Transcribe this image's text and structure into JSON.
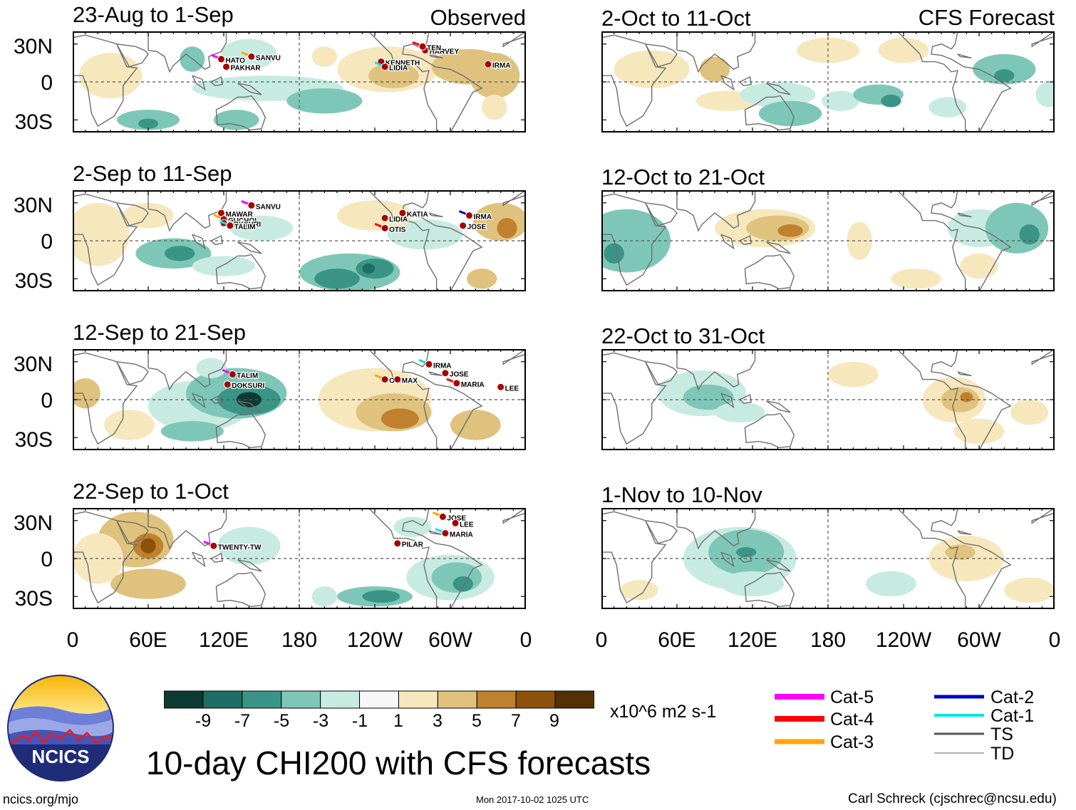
{
  "column_titles": {
    "left": "Observed",
    "right": "CFS Forecast"
  },
  "chart_data": [
    {
      "type": "heatmap",
      "panel": "observed-1",
      "title": "23-Aug to 1-Sep",
      "storms": [
        "HATO",
        "PAKHAR",
        "SANVU",
        "KENNETH",
        "LIDIA",
        "HARVEY",
        "TEN",
        "IRMA"
      ]
    },
    {
      "type": "heatmap",
      "panel": "observed-2",
      "title": "2-Sep to 11-Sep",
      "storms": [
        "SANVU",
        "MAWAR",
        "GUCHOL",
        "DOKSURI",
        "TALIM",
        "LIDIA",
        "OTIS",
        "KATIA",
        "IRMA",
        "JOSE"
      ]
    },
    {
      "type": "heatmap",
      "panel": "observed-3",
      "title": "12-Sep to 21-Sep",
      "storms": [
        "TALIM",
        "DOKSURI",
        "OTIS",
        "MAX",
        "IRMA",
        "JOSE",
        "MARIA",
        "LEE"
      ]
    },
    {
      "type": "heatmap",
      "panel": "observed-4",
      "title": "22-Sep to 1-Oct",
      "storms": [
        "TWENTY-TW",
        "PILAR",
        "JOSE",
        "LEE",
        "MARIA"
      ]
    },
    {
      "type": "heatmap",
      "panel": "forecast-1",
      "title": "2-Oct to 11-Oct",
      "storms": []
    },
    {
      "type": "heatmap",
      "panel": "forecast-2",
      "title": "12-Oct to 21-Oct",
      "storms": []
    },
    {
      "type": "heatmap",
      "panel": "forecast-3",
      "title": "22-Oct to 31-Oct",
      "storms": []
    },
    {
      "type": "heatmap",
      "panel": "forecast-4",
      "title": "1-Nov to 10-Nov",
      "storms": []
    }
  ],
  "axes": {
    "y_ticks": [
      "30N",
      "0",
      "30S"
    ],
    "x_ticks": [
      "0",
      "60E",
      "120E",
      "180",
      "120W",
      "60W",
      "0"
    ],
    "xlim_deg": [
      0,
      360
    ],
    "ylim_deg": [
      -40,
      40
    ]
  },
  "colorbar": {
    "labels": [
      "-9",
      "-7",
      "-5",
      "-3",
      "-1",
      "1",
      "3",
      "5",
      "7",
      "9"
    ],
    "colors": [
      "#0d3b33",
      "#1f6e63",
      "#3a9586",
      "#7ec7b8",
      "#c8ebe1",
      "#f7f7f7",
      "#f6e7bd",
      "#dfc27d",
      "#bf812d",
      "#8c510a",
      "#543005"
    ],
    "units": "x10^6 m2 s-1"
  },
  "legend": {
    "items": [
      {
        "label": "Cat-5",
        "color": "#ff00ff"
      },
      {
        "label": "Cat-4",
        "color": "#ff0000"
      },
      {
        "label": "Cat-3",
        "color": "#ffa500"
      },
      {
        "label": "Cat-2",
        "color": "#0000cc"
      },
      {
        "label": "Cat-1",
        "color": "#00e5e5"
      },
      {
        "label": "TS",
        "color": "#555555"
      },
      {
        "label": "TD",
        "color": "#999999"
      }
    ]
  },
  "logo": {
    "text": "NCICS"
  },
  "main_title": "10-day CHI200 with CFS forecasts",
  "footer": {
    "url": "ncics.org/mjo",
    "timestamp": "Mon 2017-10-02 1025 UTC",
    "credit": "Carl Schreck (cjschrec@ncsu.edu)"
  }
}
